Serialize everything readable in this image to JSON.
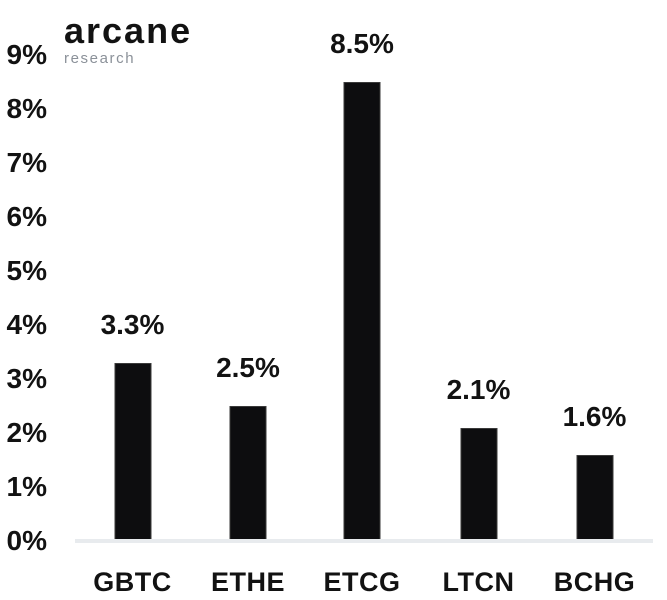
{
  "logo": {
    "brand": "arcane",
    "sub": "research"
  },
  "chart_data": {
    "type": "bar",
    "title": "",
    "xlabel": "",
    "ylabel": "",
    "categories": [
      "GBTC",
      "ETHE",
      "ETCG",
      "LTCN",
      "BCHG"
    ],
    "values": [
      3.3,
      2.5,
      8.5,
      2.1,
      1.6
    ],
    "value_labels": [
      "3.3%",
      "2.5%",
      "8.5%",
      "2.1%",
      "1.6%"
    ],
    "ylim": [
      0,
      9
    ],
    "ytick_labels": [
      "0%",
      "1%",
      "2%",
      "3%",
      "4%",
      "5%",
      "6%",
      "7%",
      "8%",
      "9%"
    ],
    "grid": false,
    "legend": false,
    "bar_color": "#0d0d0f",
    "axis_line_color": "#e8ebee",
    "text_color": "#121212",
    "sub_text_color": "#8b9199"
  }
}
